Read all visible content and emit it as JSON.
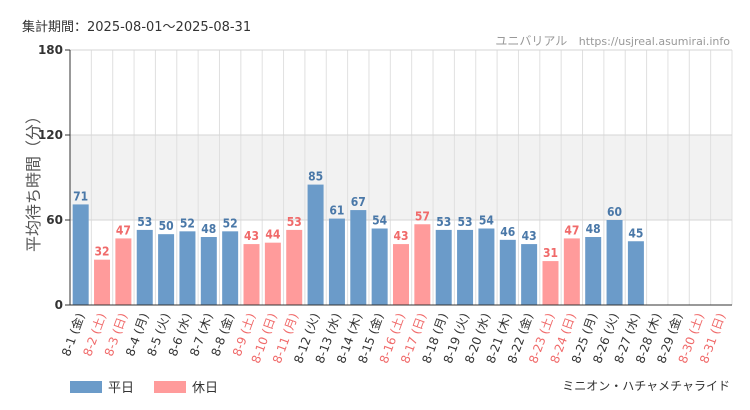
{
  "header": {
    "period": "集計期間：2025-08-01～2025-08-31",
    "site_name": "ユニバリアル",
    "site_url": "https://usjreal.asumirai.info"
  },
  "footer": {
    "attraction": "ミニオン・ハチャメチャライド"
  },
  "legend": {
    "weekday_label": "平日",
    "holiday_label": "休日"
  },
  "colors": {
    "weekday": "#6b9bc9",
    "holiday": "#ff9b9b",
    "weekday_text": "#4a78a8",
    "holiday_text": "#f06a6a",
    "band": "#f2f2f2",
    "grid": "#e0e0e0"
  },
  "chart_data": {
    "type": "bar",
    "ylabel": "平均待ち時間（分）",
    "xlabel": "",
    "ylim": [
      0,
      180
    ],
    "yticks": [
      0,
      60,
      120,
      180
    ],
    "shaded_band": [
      60,
      120
    ],
    "categories": [
      "8-1 (金)",
      "8-2 (土)",
      "8-3 (日)",
      "8-4 (月)",
      "8-5 (火)",
      "8-6 (水)",
      "8-7 (木)",
      "8-8 (金)",
      "8-9 (土)",
      "8-10 (日)",
      "8-11 (月)",
      "8-12 (火)",
      "8-13 (水)",
      "8-14 (木)",
      "8-15 (金)",
      "8-16 (土)",
      "8-17 (日)",
      "8-18 (月)",
      "8-19 (火)",
      "8-20 (水)",
      "8-21 (木)",
      "8-22 (金)",
      "8-23 (土)",
      "8-24 (日)",
      "8-25 (月)",
      "8-26 (火)",
      "8-27 (水)",
      "8-28 (木)",
      "8-29 (金)",
      "8-30 (土)",
      "8-31 (日)"
    ],
    "values": [
      71,
      32,
      47,
      53,
      50,
      52,
      48,
      52,
      43,
      44,
      53,
      85,
      61,
      67,
      54,
      43,
      57,
      53,
      53,
      54,
      46,
      43,
      31,
      47,
      48,
      60,
      45,
      null,
      null,
      null,
      null
    ],
    "holiday": [
      false,
      true,
      true,
      false,
      false,
      false,
      false,
      false,
      true,
      true,
      true,
      false,
      false,
      false,
      false,
      true,
      true,
      false,
      false,
      false,
      false,
      false,
      true,
      true,
      false,
      false,
      false,
      false,
      false,
      true,
      true
    ],
    "series": [
      {
        "name": "平日"
      },
      {
        "name": "休日"
      }
    ]
  }
}
